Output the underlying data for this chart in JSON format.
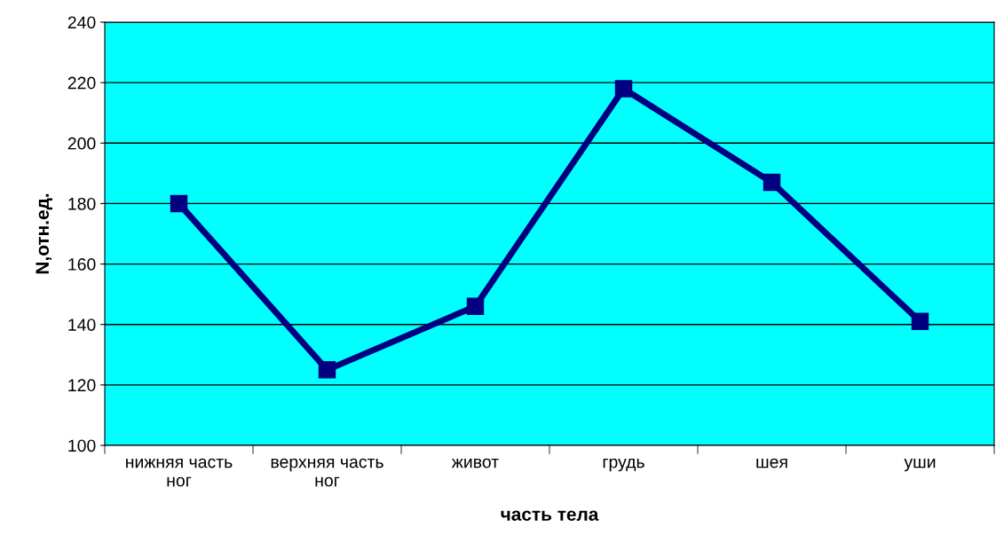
{
  "chart_data": {
    "type": "line",
    "xlabel": "часть тела",
    "ylabel": "N,отн.ед.",
    "categories": [
      "нижняя часть\nног",
      "верхняя часть\nног",
      "живот",
      "грудь",
      "шея",
      "уши"
    ],
    "series": [
      {
        "color": "#000080",
        "values": [
          180,
          125,
          146,
          218,
          187,
          141
        ]
      }
    ],
    "ylim": [
      100,
      240
    ],
    "yticks": [
      100,
      120,
      140,
      160,
      180,
      200,
      220,
      240
    ],
    "grid": "y",
    "marker": "square",
    "line_style": "solid",
    "legend": false
  }
}
